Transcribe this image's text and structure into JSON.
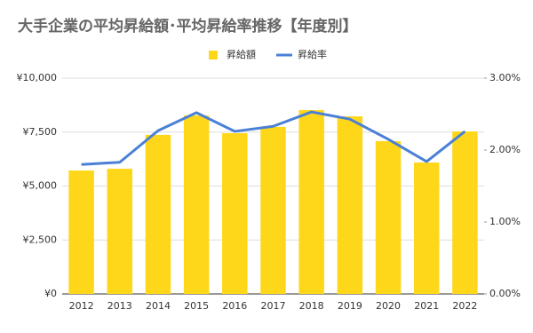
{
  "chart_data": {
    "type": "combo",
    "title": "大手企業の平均昇給額･平均昇給率推移【年度別】",
    "categories": [
      "2012",
      "2013",
      "2014",
      "2015",
      "2016",
      "2017",
      "2018",
      "2019",
      "2020",
      "2021",
      "2022"
    ],
    "series": [
      {
        "name": "昇給額",
        "type": "bar",
        "color": "#ffd71a",
        "values": [
          5720,
          5800,
          7370,
          8270,
          7450,
          7740,
          8520,
          8230,
          7080,
          6090,
          7530
        ]
      },
      {
        "name": "昇給率",
        "type": "line",
        "axis": "y2",
        "color": "#4a80d6",
        "values": [
          1.8,
          1.83,
          2.27,
          2.52,
          2.26,
          2.33,
          2.53,
          2.43,
          2.15,
          1.84,
          2.26
        ]
      }
    ],
    "ylim": [
      0,
      10000
    ],
    "yticks": [
      {
        "value": 0,
        "label": "¥0"
      },
      {
        "value": 2500,
        "label": "¥2,500"
      },
      {
        "value": 5000,
        "label": "¥5,000"
      },
      {
        "value": 7500,
        "label": "¥7,500"
      },
      {
        "value": 10000,
        "label": "¥10,000"
      }
    ],
    "y2lim": [
      0,
      3
    ],
    "y2ticks": [
      {
        "value": 0,
        "label": "0.00%"
      },
      {
        "value": 1,
        "label": "1.00%"
      },
      {
        "value": 2,
        "label": "2.00%"
      },
      {
        "value": 3,
        "label": "3.00%"
      }
    ],
    "grid": true,
    "legend": "top"
  }
}
